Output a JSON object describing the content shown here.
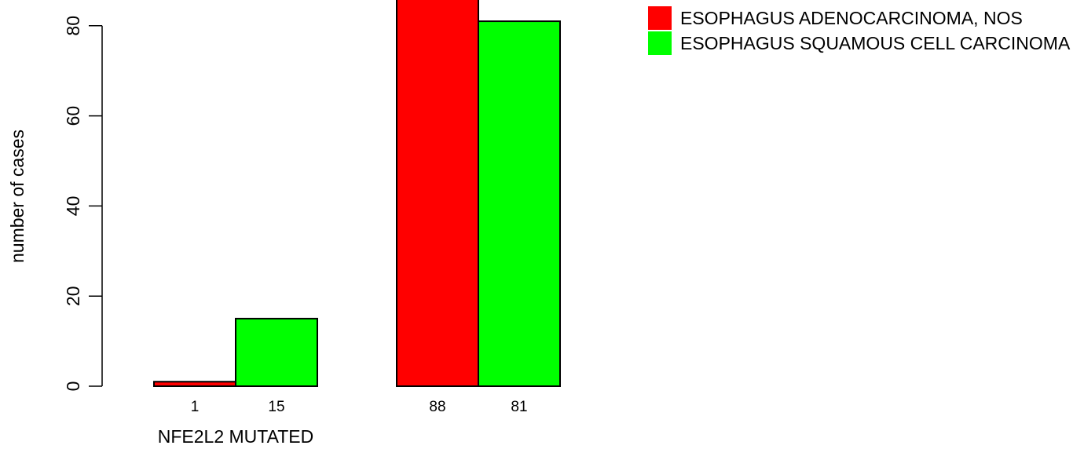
{
  "chart_data": {
    "type": "bar",
    "ylabel": "number of cases",
    "yticks": [
      0,
      20,
      40,
      60,
      80
    ],
    "ylim": [
      0,
      90
    ],
    "groups": [
      {
        "label": "NFE2L2 MUTATED",
        "values": [
          1,
          15
        ],
        "value_labels": [
          "1",
          "15"
        ]
      },
      {
        "label": "",
        "values": [
          88,
          81
        ],
        "value_labels": [
          "88",
          "81"
        ]
      }
    ],
    "series": [
      {
        "name": "ESOPHAGUS ADENOCARCINOMA, NOS",
        "color": "#ff0000"
      },
      {
        "name": "ESOPHAGUS SQUAMOUS CELL CARCINOMA",
        "color": "#00ff00"
      }
    ],
    "legend": "top-right",
    "grid": false
  }
}
